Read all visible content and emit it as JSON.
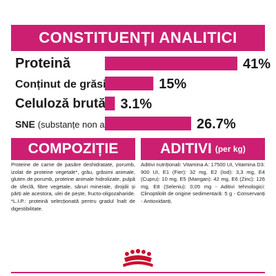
{
  "header": {
    "title": "CONSTITUENȚI ANALITICI"
  },
  "chart_data": {
    "type": "bar",
    "orientation": "horizontal",
    "categories": [
      "Proteină",
      "Conținut de grăsimi",
      "Celuloză brută",
      "SNE"
    ],
    "category_notes": [
      "",
      "",
      "",
      "(substanțe non azotate)"
    ],
    "values": [
      41,
      15,
      3.1,
      26.7
    ],
    "value_labels": [
      "41%",
      "15%",
      "3.1%",
      "26.7%"
    ],
    "unit": "%",
    "bar_color": "#cc1f72",
    "xlim": [
      0,
      41
    ]
  },
  "composition": {
    "title": "COMPOZIȚIE",
    "text": "Proteine de carne de pasăre deshidratate, porumb, izolat de proteine vegetale*, grâu, grăsimi animale, gluten de porumb, proteine animale hidrolizate, pulpă de sfeclă, fibre vegetale, săruri minerale, drojdii și părți ale acestora, ulei de pește, fructo-oligozaharide. *L.I.P.: proteină selecționată pentru gradul înalt de digestibilitate."
  },
  "additives": {
    "title": "ADITIVI",
    "subtitle": "(per kg)",
    "text": "Aditivi nutriționali: Vitamina A: 17500 UI, Vitamina D3: 900 UI, E1 (Fier): 32 mg, E2 (Iod): 3,3 mg, E4 (Cupru): 10 mg, E5 (Mangan): 42 mg, E6 (Zinc): 126 mg, E8 (Seleniu): 0,05 mg - Aditivi tehnologici: Clinoptilolit de origine sedimentară: 5 g - Conservanți - Antioxidanți."
  },
  "colors": {
    "accent": "#cc1f72",
    "logo": "#c8102e"
  },
  "logo": {
    "icon": "royal-canin-crown-icon"
  }
}
